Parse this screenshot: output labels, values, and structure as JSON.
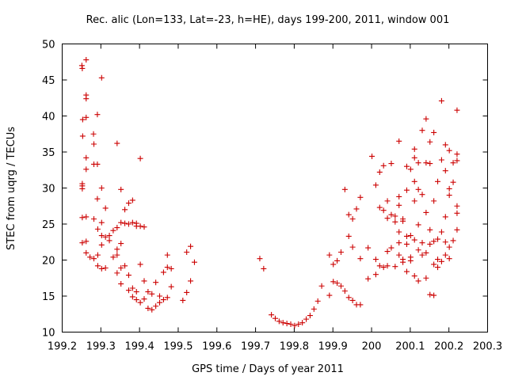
{
  "chart_data": {
    "type": "scatter",
    "title": "Rec. alic (Lon=133, Lat=-23, h=HE), days 199-200, 2011, window 001",
    "xlabel": "GPS time / Days of year 2011",
    "ylabel": "STEC from uqrg / TECUs",
    "xlim": [
      199.2,
      200.3
    ],
    "ylim": [
      10,
      50
    ],
    "xticks": [
      199.2,
      199.3,
      199.4,
      199.5,
      199.6,
      199.7,
      199.8,
      199.9,
      200.0,
      200.1,
      200.2,
      200.3
    ],
    "xtick_labels": [
      "199.2",
      "199.3",
      "199.4",
      "199.5",
      "199.6",
      "199.7",
      "199.8",
      "199.9",
      "200",
      "200.1",
      "200.2",
      "200.3"
    ],
    "yticks": [
      10,
      15,
      20,
      25,
      30,
      35,
      40,
      45,
      50
    ],
    "ytick_labels": [
      "10",
      "15",
      "20",
      "25",
      "30",
      "35",
      "40",
      "45",
      "50"
    ],
    "grid": false,
    "marker": "plus",
    "color": "#cc0000",
    "series": [
      {
        "name": "STEC",
        "points": [
          [
            199.251,
            47.0
          ],
          [
            199.252,
            46.6
          ],
          [
            199.262,
            47.8
          ],
          [
            199.262,
            42.9
          ],
          [
            199.262,
            42.4
          ],
          [
            199.281,
            37.5
          ],
          [
            199.291,
            40.2
          ],
          [
            199.302,
            45.3
          ],
          [
            199.253,
            39.5
          ],
          [
            199.262,
            39.8
          ],
          [
            199.253,
            37.2
          ],
          [
            199.282,
            36.1
          ],
          [
            199.262,
            34.2
          ],
          [
            199.262,
            32.6
          ],
          [
            199.282,
            33.3
          ],
          [
            199.291,
            33.3
          ],
          [
            199.252,
            30.6
          ],
          [
            199.252,
            30.3
          ],
          [
            199.252,
            29.9
          ],
          [
            199.302,
            30.0
          ],
          [
            199.291,
            28.5
          ],
          [
            199.252,
            25.9
          ],
          [
            199.262,
            26.0
          ],
          [
            199.282,
            25.7
          ],
          [
            199.302,
            25.2
          ],
          [
            199.312,
            27.2
          ],
          [
            199.292,
            24.3
          ],
          [
            199.302,
            23.4
          ],
          [
            199.312,
            23.2
          ],
          [
            199.322,
            22.7
          ],
          [
            199.252,
            22.4
          ],
          [
            199.262,
            22.6
          ],
          [
            199.302,
            22.1
          ],
          [
            199.262,
            21.0
          ],
          [
            199.272,
            20.4
          ],
          [
            199.282,
            20.2
          ],
          [
            199.292,
            20.7
          ],
          [
            199.292,
            19.2
          ],
          [
            199.302,
            18.8
          ],
          [
            199.312,
            18.9
          ],
          [
            199.322,
            23.4
          ],
          [
            199.332,
            24.1
          ],
          [
            199.342,
            24.5
          ],
          [
            199.342,
            36.2
          ],
          [
            199.352,
            25.2
          ],
          [
            199.352,
            29.8
          ],
          [
            199.362,
            25.1
          ],
          [
            199.362,
            27.0
          ],
          [
            199.372,
            25.0
          ],
          [
            199.372,
            27.9
          ],
          [
            199.382,
            28.3
          ],
          [
            199.382,
            25.2
          ],
          [
            199.392,
            25.1
          ],
          [
            199.392,
            24.7
          ],
          [
            199.402,
            34.1
          ],
          [
            199.402,
            24.7
          ],
          [
            199.412,
            24.6
          ],
          [
            199.332,
            20.4
          ],
          [
            199.342,
            21.5
          ],
          [
            199.342,
            20.7
          ],
          [
            199.352,
            22.3
          ],
          [
            199.352,
            18.9
          ],
          [
            199.342,
            18.2
          ],
          [
            199.352,
            16.7
          ],
          [
            199.362,
            19.2
          ],
          [
            199.372,
            17.9
          ],
          [
            199.372,
            15.8
          ],
          [
            199.382,
            16.1
          ],
          [
            199.382,
            14.9
          ],
          [
            199.392,
            15.6
          ],
          [
            199.392,
            14.5
          ],
          [
            199.402,
            14.1
          ],
          [
            199.402,
            19.4
          ],
          [
            199.412,
            14.6
          ],
          [
            199.412,
            17.1
          ],
          [
            199.422,
            13.3
          ],
          [
            199.422,
            15.6
          ],
          [
            199.432,
            13.1
          ],
          [
            199.432,
            15.3
          ],
          [
            199.442,
            13.6
          ],
          [
            199.442,
            16.9
          ],
          [
            199.452,
            14.1
          ],
          [
            199.452,
            15.0
          ],
          [
            199.462,
            18.3
          ],
          [
            199.462,
            14.5
          ],
          [
            199.472,
            14.8
          ],
          [
            199.472,
            19.0
          ],
          [
            199.482,
            16.3
          ],
          [
            199.482,
            18.8
          ],
          [
            199.472,
            20.7
          ],
          [
            199.512,
            14.4
          ],
          [
            199.522,
            15.5
          ],
          [
            199.522,
            21.1
          ],
          [
            199.532,
            17.1
          ],
          [
            199.532,
            21.9
          ],
          [
            199.542,
            19.7
          ],
          [
            199.711,
            20.2
          ],
          [
            199.721,
            18.8
          ],
          [
            199.741,
            12.4
          ],
          [
            199.751,
            11.9
          ],
          [
            199.761,
            11.5
          ],
          [
            199.771,
            11.3
          ],
          [
            199.781,
            11.2
          ],
          [
            199.791,
            11.1
          ],
          [
            199.801,
            10.9
          ],
          [
            199.811,
            11.1
          ],
          [
            199.821,
            11.3
          ],
          [
            199.831,
            11.8
          ],
          [
            199.841,
            12.3
          ],
          [
            199.851,
            13.2
          ],
          [
            199.861,
            14.3
          ],
          [
            199.871,
            16.4
          ],
          [
            199.891,
            20.7
          ],
          [
            199.891,
            15.1
          ],
          [
            199.901,
            17.0
          ],
          [
            199.901,
            19.4
          ],
          [
            199.911,
            16.8
          ],
          [
            199.911,
            19.9
          ],
          [
            199.921,
            16.4
          ],
          [
            199.921,
            21.1
          ],
          [
            199.931,
            15.7
          ],
          [
            199.931,
            29.8
          ],
          [
            199.941,
            14.8
          ],
          [
            199.941,
            26.3
          ],
          [
            199.941,
            23.3
          ],
          [
            199.951,
            14.4
          ],
          [
            199.951,
            25.7
          ],
          [
            199.951,
            21.8
          ],
          [
            199.961,
            13.8
          ],
          [
            199.961,
            27.1
          ],
          [
            199.971,
            13.8
          ],
          [
            199.971,
            28.7
          ],
          [
            199.971,
            20.2
          ],
          [
            199.991,
            17.4
          ],
          [
            199.991,
            21.7
          ],
          [
            200.001,
            34.4
          ],
          [
            200.011,
            30.4
          ],
          [
            200.011,
            20.1
          ],
          [
            200.011,
            18.0
          ],
          [
            200.021,
            32.2
          ],
          [
            200.021,
            27.3
          ],
          [
            200.021,
            19.2
          ],
          [
            200.031,
            26.9
          ],
          [
            200.031,
            33.1
          ],
          [
            200.031,
            19.0
          ],
          [
            200.041,
            25.8
          ],
          [
            200.041,
            28.2
          ],
          [
            200.041,
            21.2
          ],
          [
            200.041,
            19.2
          ],
          [
            200.051,
            33.4
          ],
          [
            200.051,
            26.3
          ],
          [
            200.051,
            21.7
          ],
          [
            200.061,
            26.1
          ],
          [
            200.061,
            25.3
          ],
          [
            200.061,
            19.1
          ],
          [
            200.071,
            28.8
          ],
          [
            200.071,
            36.5
          ],
          [
            200.071,
            27.6
          ],
          [
            200.071,
            23.9
          ],
          [
            200.071,
            22.4
          ],
          [
            200.071,
            20.7
          ],
          [
            200.081,
            25.7
          ],
          [
            200.081,
            25.4
          ],
          [
            200.081,
            20.1
          ],
          [
            200.081,
            19.7
          ],
          [
            200.091,
            33.0
          ],
          [
            200.091,
            29.7
          ],
          [
            200.091,
            23.3
          ],
          [
            200.091,
            22.2
          ],
          [
            200.091,
            18.4
          ],
          [
            200.101,
            32.6
          ],
          [
            200.101,
            23.4
          ],
          [
            200.101,
            20.4
          ],
          [
            200.101,
            19.9
          ],
          [
            200.111,
            35.4
          ],
          [
            200.111,
            34.2
          ],
          [
            200.111,
            30.9
          ],
          [
            200.111,
            28.2
          ],
          [
            200.111,
            22.8
          ],
          [
            200.111,
            17.8
          ],
          [
            200.121,
            33.5
          ],
          [
            200.121,
            29.8
          ],
          [
            200.121,
            24.9
          ],
          [
            200.121,
            21.4
          ],
          [
            200.121,
            17.1
          ],
          [
            200.131,
            38.0
          ],
          [
            200.131,
            29.1
          ],
          [
            200.131,
            22.4
          ],
          [
            200.131,
            20.7
          ],
          [
            200.141,
            39.6
          ],
          [
            200.141,
            33.5
          ],
          [
            200.141,
            26.6
          ],
          [
            200.141,
            21.0
          ],
          [
            200.141,
            17.5
          ],
          [
            200.151,
            33.4
          ],
          [
            200.151,
            36.4
          ],
          [
            200.151,
            24.2
          ],
          [
            200.151,
            22.2
          ],
          [
            200.151,
            15.2
          ],
          [
            200.161,
            37.7
          ],
          [
            200.161,
            28.2
          ],
          [
            200.161,
            22.6
          ],
          [
            200.161,
            19.4
          ],
          [
            200.171,
            30.9
          ],
          [
            200.171,
            22.9
          ],
          [
            200.171,
            20.1
          ],
          [
            200.181,
            42.1
          ],
          [
            200.181,
            33.9
          ],
          [
            200.181,
            23.9
          ],
          [
            200.181,
            19.8
          ],
          [
            200.191,
            36.0
          ],
          [
            200.191,
            32.4
          ],
          [
            200.191,
            26.0
          ],
          [
            200.191,
            22.5
          ],
          [
            200.201,
            35.2
          ],
          [
            200.201,
            29.9
          ],
          [
            200.201,
            29.0
          ],
          [
            200.201,
            20.2
          ],
          [
            200.211,
            33.5
          ],
          [
            200.211,
            30.8
          ],
          [
            200.211,
            22.7
          ],
          [
            200.221,
            40.8
          ],
          [
            200.221,
            34.7
          ],
          [
            200.221,
            33.8
          ],
          [
            200.221,
            27.5
          ],
          [
            200.221,
            26.5
          ],
          [
            200.221,
            24.2
          ],
          [
            200.201,
            21.8
          ],
          [
            200.191,
            20.7
          ],
          [
            200.171,
            19.0
          ],
          [
            200.161,
            15.1
          ]
        ]
      }
    ]
  }
}
